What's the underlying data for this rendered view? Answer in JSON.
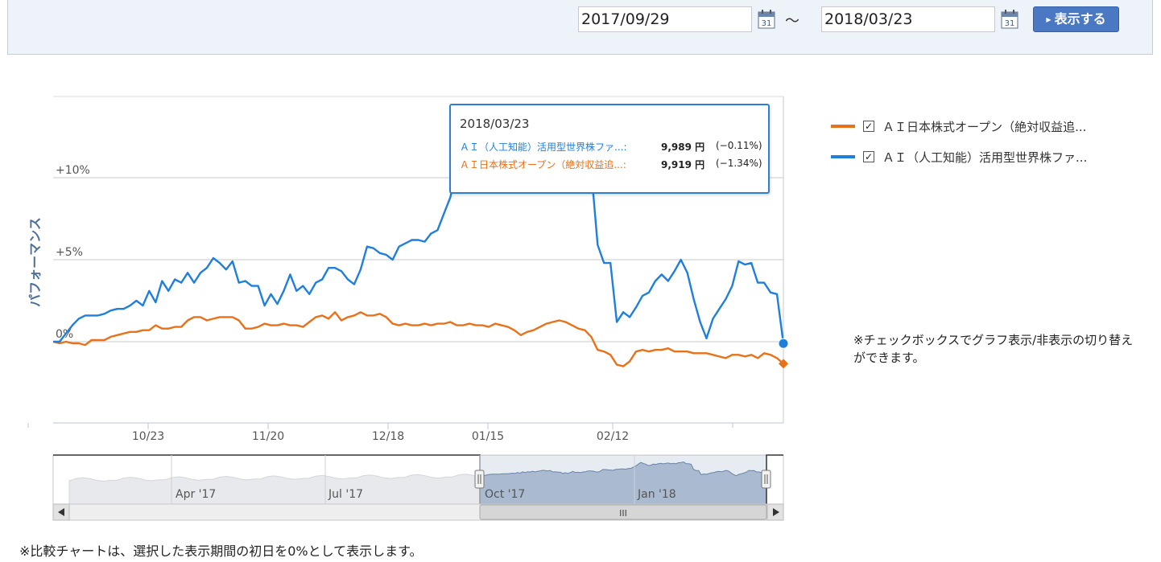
{
  "form": {
    "start_date": "2017/09/29",
    "end_date": "2018/03/23",
    "separator": "～",
    "show_label": "表示する",
    "calendar_icon_text": "31"
  },
  "legend": [
    {
      "label": "ＡＩ日本株式オープン（絶対収益追...",
      "color": "#e8711a",
      "checked": true
    },
    {
      "label": "ＡＩ（人工知能）活用型世界株ファ...",
      "color": "#1f7fdb",
      "checked": true
    }
  ],
  "note": "※チェックボックスでグラフ表示/非表示の切り替えができます。",
  "bottom_note": "※比較チャートは、選択した表示期間の初日を0%として表示します。",
  "tooltip": {
    "date": "2018/03/23",
    "rows": [
      {
        "name": "ＡＩ（人工知能）活用型世界株ファ...:",
        "value": "9,989 円",
        "pct": "(−0.11%)",
        "color": "#1f7fdb"
      },
      {
        "name": "ＡＩ日本株式オープン（絶対収益追...:",
        "value": "9,919 円",
        "pct": "(−1.34%)",
        "color": "#e8711a"
      }
    ]
  },
  "chart_data": {
    "type": "line",
    "ylabel": "パフォーマンス",
    "y_ticks": [
      "+10%",
      "+5%",
      "0%"
    ],
    "x_ticks": [
      "10/23",
      "11/20",
      "12/18",
      "01/15",
      "02/12"
    ],
    "ylim": [
      -5,
      15
    ],
    "grid": true,
    "legend_position": "right",
    "series": [
      {
        "name": "ＡＩ（人工知能）活用型世界株ファ...",
        "color": "#1f7fdb",
        "values": [
          0,
          0,
          0.5,
          1,
          1.4,
          1.6,
          1.6,
          1.6,
          1.7,
          1.9,
          2.0,
          2.0,
          2.2,
          2.5,
          2.2,
          3.1,
          2.4,
          3.7,
          3.1,
          3.8,
          3.6,
          4.2,
          3.6,
          4.2,
          4.5,
          5.1,
          4.8,
          4.4,
          4.9,
          3.6,
          3.7,
          3.4,
          3.4,
          2.2,
          2.9,
          2.3,
          3.1,
          4.1,
          3.1,
          3.4,
          2.9,
          3.6,
          3.8,
          4.5,
          4.5,
          4.3,
          3.8,
          3.5,
          4.4,
          5.8,
          5.7,
          5.4,
          5.3,
          5.0,
          5.8,
          6.0,
          6.2,
          6.2,
          6.1,
          6.6,
          6.8,
          7.8,
          8.8,
          10.5,
          12.0,
          11.2,
          10.4,
          9.2,
          9.6,
          10.6,
          10.2,
          11.0,
          11.2,
          10.8,
          11.3,
          11.5,
          10.8,
          11.2,
          10.9,
          11.8,
          12.0,
          12.5,
          11.0,
          10.9,
          10.5,
          5.9,
          4.8,
          4.8,
          1.2,
          1.8,
          1.5,
          2.1,
          2.8,
          3.0,
          3.7,
          4.1,
          3.7,
          4.3,
          5.0,
          4.2,
          2.6,
          1.2,
          0.2,
          1.4,
          2.0,
          2.6,
          3.4,
          4.9,
          4.7,
          4.8,
          3.6,
          3.6,
          3.0,
          2.9,
          -0.11
        ]
      },
      {
        "name": "ＡＩ日本株式オープン（絶対収益追...",
        "color": "#e8711a",
        "values": [
          0,
          -0.1,
          0,
          -0.1,
          -0.1,
          -0.2,
          0.1,
          0.1,
          0.1,
          0.3,
          0.4,
          0.5,
          0.6,
          0.6,
          0.7,
          0.7,
          1.0,
          0.8,
          0.8,
          0.9,
          0.9,
          1.3,
          1.5,
          1.5,
          1.3,
          1.4,
          1.5,
          1.5,
          1.5,
          1.3,
          0.8,
          0.8,
          0.9,
          1.1,
          1.0,
          1.0,
          1.1,
          1.0,
          1.0,
          0.9,
          1.2,
          1.5,
          1.6,
          1.4,
          1.8,
          1.3,
          1.5,
          1.6,
          1.8,
          1.6,
          1.6,
          1.7,
          1.5,
          1.1,
          1.0,
          1.1,
          1.0,
          1.0,
          1.1,
          1.0,
          1.1,
          1.1,
          1.2,
          1.0,
          1.0,
          1.1,
          1.0,
          1.0,
          0.9,
          1.1,
          1.0,
          0.9,
          0.7,
          0.4,
          0.6,
          0.7,
          0.9,
          1.1,
          1.2,
          1.3,
          1.2,
          1.0,
          0.8,
          0.7,
          0.3,
          -0.5,
          -0.6,
          -0.8,
          -1.4,
          -1.5,
          -1.2,
          -0.6,
          -0.5,
          -0.6,
          -0.5,
          -0.5,
          -0.4,
          -0.6,
          -0.6,
          -0.6,
          -0.7,
          -0.7,
          -0.7,
          -0.8,
          -0.9,
          -1.0,
          -0.8,
          -0.8,
          -0.9,
          -0.8,
          -1.0,
          -0.7,
          -0.8,
          -1.0,
          -1.34
        ]
      }
    ]
  },
  "navigator": {
    "labels": [
      "Apr '17",
      "Jul '17",
      "Oct '17",
      "Jan '18"
    ],
    "scrollbar_grip": "III"
  }
}
